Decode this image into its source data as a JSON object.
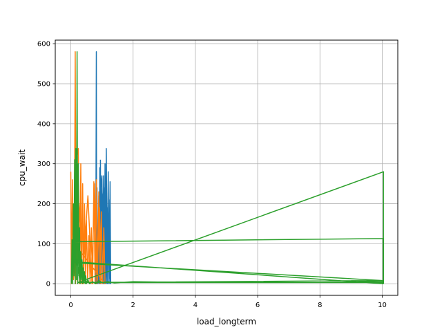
{
  "chart_data": {
    "type": "line",
    "title": "",
    "xlabel": "load_longterm",
    "ylabel": "cpu_wait",
    "xlim": [
      -0.5,
      10.5
    ],
    "ylim": [
      -29,
      609
    ],
    "xticks": [
      0,
      2,
      4,
      6,
      8,
      10
    ],
    "xtick_labels": [
      "0",
      "2",
      "4",
      "6",
      "8",
      "10"
    ],
    "yticks": [
      0,
      100,
      200,
      300,
      400,
      500,
      600
    ],
    "ytick_labels": [
      "0",
      "100",
      "200",
      "300",
      "400",
      "500",
      "600"
    ],
    "grid": true,
    "legend": "none",
    "colors": [
      "#1f77b4",
      "#ff7f0e",
      "#2ca02c"
    ],
    "series": [
      {
        "color": "#1f77b4",
        "x": [
          0.95,
          0.97,
          0.99,
          1.02,
          1.05,
          1.08,
          1.1,
          1.12,
          1.14,
          1.17,
          1.2,
          1.23,
          1.26,
          1.28,
          0.93,
          0.91,
          0.9,
          0.88,
          0.85,
          0.83,
          0.82,
          0.8,
          0.84,
          0.87,
          0.92,
          0.96,
          1.0,
          1.04,
          1.09,
          1.13,
          1.18,
          1.22,
          1.25,
          1.27
        ],
        "y": [
          310,
          0,
          250,
          5,
          270,
          0,
          300,
          2,
          338,
          0,
          280,
          0,
          255,
          0,
          290,
          0,
          220,
          5,
          150,
          0,
          580,
          0,
          240,
          0,
          200,
          0,
          270,
          0,
          240,
          0,
          190,
          0,
          210,
          0
        ]
      },
      {
        "color": "#ff7f0e",
        "x": [
          0.0,
          0.02,
          0.05,
          0.08,
          0.11,
          0.14,
          0.17,
          0.2,
          0.24,
          0.28,
          0.32,
          0.35,
          0.38,
          0.41,
          0.44,
          0.47,
          0.5,
          0.54,
          0.58,
          0.62,
          0.66,
          0.7,
          0.74,
          0.78,
          0.82,
          0.86,
          0.9,
          0.94,
          0.98,
          1.02,
          1.06,
          1.1,
          0.12,
          0.15,
          0.3,
          0.36,
          0.55,
          0.68,
          0.76,
          0.84,
          0.92,
          0.97
        ],
        "y": [
          280,
          0,
          260,
          10,
          30,
          580,
          20,
          320,
          338,
          0,
          300,
          0,
          250,
          0,
          200,
          10,
          160,
          5,
          120,
          0,
          140,
          0,
          255,
          0,
          260,
          10,
          230,
          0,
          180,
          0,
          140,
          0,
          100,
          0,
          200,
          0,
          220,
          0,
          250,
          0,
          190,
          0
        ]
      },
      {
        "color": "#2ca02c",
        "x": [
          0.02,
          0.04,
          0.06,
          0.08,
          0.1,
          0.12,
          0.14,
          0.16,
          0.18,
          0.2,
          0.22,
          0.24,
          0.26,
          0.28,
          0.3,
          0.32,
          0.34,
          0.36,
          0.38,
          0.4,
          0.42,
          0.44,
          0.46,
          0.48,
          0.5,
          0.55,
          0.6,
          0.7,
          0.8,
          0.9,
          1.0,
          1.2,
          1.4,
          2.0,
          4.0,
          6.0,
          8.0,
          10.02,
          10.02,
          10.0,
          0.3,
          0.1,
          10.03,
          10.03,
          0.12,
          0.2,
          10.0,
          0.22,
          10.04,
          10.04
        ],
        "y": [
          0,
          110,
          0,
          200,
          20,
          310,
          0,
          338,
          10,
          580,
          0,
          300,
          20,
          140,
          0,
          80,
          10,
          60,
          0,
          40,
          5,
          30,
          0,
          20,
          0,
          10,
          0,
          5,
          0,
          8,
          3,
          5,
          2,
          5,
          3,
          4,
          3,
          6,
          0,
          3,
          3,
          105,
          113,
          0,
          55,
          52,
          8,
          3,
          280,
          0
        ]
      }
    ]
  }
}
